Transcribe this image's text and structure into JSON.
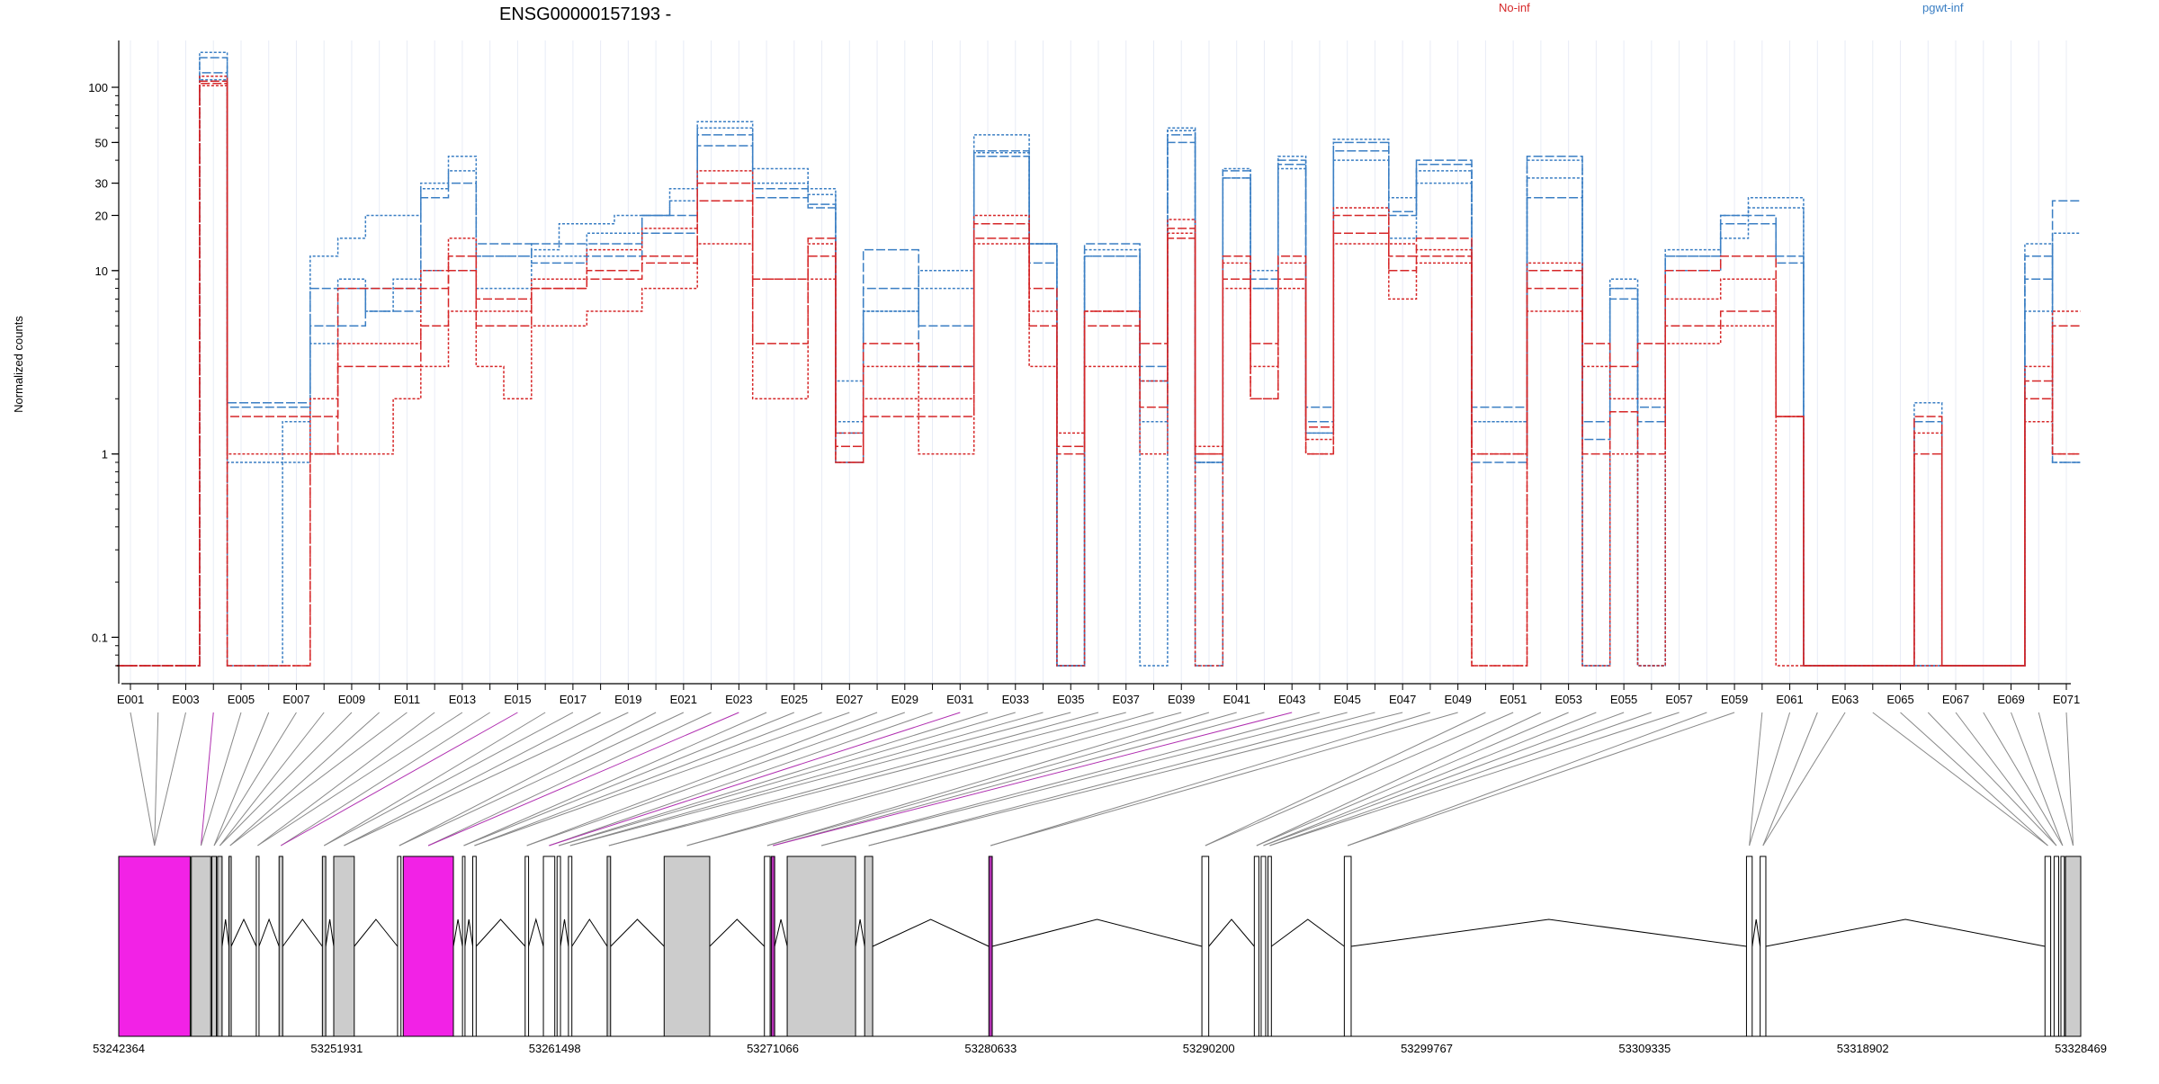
{
  "chart_data": {
    "type": "line",
    "title": "ENSG00000157193 -",
    "ylabel": "Normalized counts",
    "y_scale": "log",
    "ylim": [
      0.07,
      180
    ],
    "y_ticks": [
      0.1,
      1,
      10,
      20,
      30,
      50,
      100
    ],
    "y_tick_labels": [
      "0.1",
      "1",
      "10",
      "20",
      "30",
      "50",
      "100"
    ],
    "legend": [
      {
        "label": "No-inf",
        "color": "#d62728"
      },
      {
        "label": "pgwt-inf",
        "color": "#3b7fc4"
      }
    ],
    "exon_labels": [
      "E001",
      "E003",
      "E005",
      "E007",
      "E009",
      "E011",
      "E013",
      "E015",
      "E017",
      "E019",
      "E021",
      "E023",
      "E025",
      "E027",
      "E029",
      "E031",
      "E033",
      "E035",
      "E037",
      "E039",
      "E041",
      "E043",
      "E045",
      "E047",
      "E049",
      "E051",
      "E053",
      "E055",
      "E057",
      "E059",
      "E061",
      "E063",
      "E065",
      "E067",
      "E069",
      "E071"
    ],
    "exon_count": 71,
    "series": [
      {
        "group": "pgwt-inf",
        "color": "#3b7fc4",
        "dash": "10,3",
        "values": [
          0.07,
          0.07,
          0.07,
          145,
          1.9,
          1.9,
          1.9,
          5,
          5,
          8,
          8,
          10,
          10,
          14,
          14,
          11,
          11,
          12,
          12,
          16,
          16,
          48,
          48,
          28,
          28,
          23,
          0.9,
          13,
          13,
          5,
          5,
          45,
          45,
          14,
          0.07,
          12,
          12,
          3,
          55,
          0.9,
          35,
          8,
          40,
          1.5,
          50,
          50,
          21,
          40,
          40,
          1.8,
          1.8,
          42,
          42,
          1.5,
          8,
          1.5,
          12,
          12,
          20,
          20,
          11,
          0.07,
          0.07,
          0.07,
          0.07,
          1.5,
          0.07,
          0.07,
          0.07,
          12,
          0.9
        ]
      },
      {
        "group": "pgwt-inf",
        "color": "#3b7fc4",
        "dash": "3,2",
        "values": [
          0.07,
          0.07,
          0.07,
          155,
          0.9,
          0.9,
          1.5,
          12,
          15,
          20,
          20,
          30,
          42,
          12,
          12,
          13,
          18,
          18,
          20,
          20,
          24,
          60,
          60,
          30,
          30,
          28,
          1.5,
          6,
          6,
          8,
          8,
          55,
          55,
          14,
          0.07,
          13,
          13,
          1.5,
          58,
          0.9,
          36,
          8,
          42,
          1.3,
          52,
          52,
          25,
          35,
          35,
          1.5,
          1.5,
          40,
          40,
          0.07,
          9,
          0.07,
          13,
          13,
          20,
          25,
          25,
          0.07,
          0.07,
          0.07,
          0.07,
          1.9,
          0.07,
          0.07,
          0.07,
          14,
          0.9
        ]
      },
      {
        "group": "pgwt-inf",
        "color": "#3b7fc4",
        "dash": "10,3",
        "values": [
          0.07,
          0.07,
          0.07,
          120,
          1.8,
          1.8,
          1.8,
          8,
          8,
          6,
          6,
          25,
          30,
          12,
          12,
          14,
          14,
          14,
          14,
          20,
          20,
          55,
          55,
          25,
          25,
          22,
          1.3,
          8,
          8,
          3,
          3,
          42,
          42,
          11,
          0.07,
          14,
          14,
          2.5,
          50,
          0.07,
          32,
          9,
          38,
          1.8,
          45,
          45,
          20,
          38,
          38,
          0.9,
          0.9,
          25,
          25,
          1.2,
          7,
          1.8,
          12,
          12,
          18,
          18,
          12,
          0.07,
          0.07,
          0.07,
          0.07,
          0.07,
          0.07,
          0.07,
          0.07,
          9,
          24
        ]
      },
      {
        "group": "pgwt-inf",
        "color": "#3b7fc4",
        "dash": "3,2",
        "values": [
          0.07,
          0.07,
          0.07,
          110,
          0.07,
          0.07,
          0.9,
          4,
          9,
          6,
          9,
          28,
          35,
          8,
          8,
          12,
          12,
          16,
          16,
          20,
          28,
          65,
          65,
          36,
          36,
          26,
          2.5,
          6,
          6,
          10,
          10,
          44,
          44,
          14,
          0.07,
          12,
          12,
          0.07,
          60,
          0.9,
          32,
          10,
          36,
          1.3,
          40,
          40,
          15,
          30,
          30,
          1.5,
          1.5,
          32,
          32,
          0.07,
          8,
          0.07,
          10,
          10,
          15,
          22,
          22,
          0.07,
          0.07,
          0.07,
          0.07,
          0.07,
          0.07,
          0.07,
          0.07,
          6,
          16
        ]
      },
      {
        "group": "No-inf",
        "color": "#d62728",
        "dash": "10,3",
        "values": [
          0.07,
          0.07,
          0.07,
          105,
          1.6,
          1.6,
          1.6,
          1.6,
          8,
          8,
          8,
          8,
          12,
          7,
          7,
          8,
          8,
          10,
          10,
          11,
          11,
          30,
          30,
          9,
          9,
          15,
          1.1,
          1.6,
          1.6,
          1.6,
          1.6,
          18,
          18,
          8,
          1.1,
          6,
          6,
          4,
          17,
          1.0,
          12,
          4,
          12,
          1.4,
          20,
          20,
          12,
          15,
          15,
          1.0,
          1.0,
          10,
          10,
          4,
          3,
          4,
          10,
          10,
          12,
          12,
          1.6,
          0.07,
          0.07,
          0.07,
          0.07,
          1.6,
          0.07,
          0.07,
          0.07,
          2,
          1.0
        ]
      },
      {
        "group": "No-inf",
        "color": "#d62728",
        "dash": "3,2",
        "values": [
          0.07,
          0.07,
          0.07,
          115,
          1.0,
          1.0,
          1.0,
          2,
          4,
          4,
          4,
          10,
          15,
          6,
          6,
          9,
          9,
          13,
          13,
          17,
          17,
          35,
          35,
          9,
          9,
          14,
          1.3,
          3,
          3,
          2,
          2,
          20,
          20,
          6,
          1.3,
          6,
          6,
          2.5,
          19,
          1.1,
          11,
          3,
          11,
          1.2,
          22,
          22,
          14,
          13,
          13,
          1.0,
          1.0,
          11,
          11,
          3,
          2,
          2,
          7,
          7,
          9,
          9,
          1.6,
          0.07,
          0.07,
          0.07,
          0.07,
          1.3,
          0.07,
          0.07,
          0.07,
          3,
          1.0
        ]
      },
      {
        "group": "No-inf",
        "color": "#d62728",
        "dash": "10,3",
        "values": [
          0.07,
          0.07,
          0.07,
          108,
          0.07,
          0.07,
          0.07,
          1.0,
          3,
          3,
          3,
          5,
          10,
          5,
          5,
          8,
          8,
          9,
          9,
          12,
          12,
          24,
          24,
          4,
          4,
          12,
          0.9,
          4,
          4,
          3,
          3,
          15,
          15,
          5,
          1.0,
          5,
          5,
          1.8,
          15,
          1.0,
          9,
          2,
          9,
          1.0,
          16,
          16,
          10,
          12,
          12,
          0.07,
          0.07,
          8,
          8,
          1.0,
          1.7,
          1.0,
          5,
          5,
          6,
          6,
          1.6,
          0.07,
          0.07,
          0.07,
          0.07,
          1.0,
          0.07,
          0.07,
          0.07,
          2.5,
          5
        ]
      },
      {
        "group": "No-inf",
        "color": "#d62728",
        "dash": "3,2",
        "values": [
          0.07,
          0.07,
          0.07,
          102,
          0.07,
          0.07,
          0.07,
          1.0,
          1.0,
          1.0,
          2,
          3,
          6,
          3,
          2,
          5,
          5,
          6,
          6,
          8,
          8,
          14,
          14,
          2,
          2,
          9,
          0.9,
          2,
          2,
          1.0,
          1.0,
          14,
          14,
          3,
          0.07,
          3,
          3,
          1.0,
          16,
          0.07,
          8,
          2,
          8,
          1.0,
          14,
          14,
          7,
          11,
          11,
          0.07,
          0.07,
          6,
          6,
          0.07,
          1.0,
          0.07,
          4,
          4,
          5,
          5,
          0.07,
          0.07,
          0.07,
          0.07,
          0.07,
          0.07,
          0.07,
          0.07,
          0.07,
          1.5,
          6
        ]
      }
    ],
    "genomic_ticks": [
      "53242364",
      "53251931",
      "53261498",
      "53271066",
      "53280633",
      "53290200",
      "53299767",
      "53309335",
      "53318902",
      "53328469"
    ],
    "genomic_range": [
      53242364,
      53328469
    ],
    "gene_model_exons": [
      {
        "start": 53242364,
        "end": 53245500,
        "fill": "#f222e6"
      },
      {
        "start": 53245550,
        "end": 53246400,
        "fill": "#cccccc"
      },
      {
        "start": 53246450,
        "end": 53246650,
        "fill": "#cccccc"
      },
      {
        "start": 53246700,
        "end": 53246900,
        "fill": "#cccccc"
      },
      {
        "start": 53247200,
        "end": 53247300,
        "fill": "#cccccc"
      },
      {
        "start": 53248400,
        "end": 53248520,
        "fill": "#ffffff"
      },
      {
        "start": 53249400,
        "end": 53249560,
        "fill": "#cccccc"
      },
      {
        "start": 53251300,
        "end": 53251450,
        "fill": "#cccccc"
      },
      {
        "start": 53251800,
        "end": 53252700,
        "fill": "#cccccc"
      },
      {
        "start": 53254600,
        "end": 53254750,
        "fill": "#ffffff"
      },
      {
        "start": 53254850,
        "end": 53257050,
        "fill": "#f222e6"
      },
      {
        "start": 53257450,
        "end": 53257560,
        "fill": "#ffffff"
      },
      {
        "start": 53257900,
        "end": 53258050,
        "fill": "#ffffff"
      },
      {
        "start": 53260200,
        "end": 53260350,
        "fill": "#ffffff"
      },
      {
        "start": 53261000,
        "end": 53261500,
        "fill": "#ffffff"
      },
      {
        "start": 53261600,
        "end": 53261750,
        "fill": "#ffffff"
      },
      {
        "start": 53262100,
        "end": 53262250,
        "fill": "#ffffff"
      },
      {
        "start": 53263800,
        "end": 53263950,
        "fill": "#cccccc"
      },
      {
        "start": 53266300,
        "end": 53268300,
        "fill": "#cccccc"
      },
      {
        "start": 53270700,
        "end": 53270950,
        "fill": "#ffffff"
      },
      {
        "start": 53271000,
        "end": 53271150,
        "fill": "#b02fb0"
      },
      {
        "start": 53271700,
        "end": 53274700,
        "fill": "#cccccc"
      },
      {
        "start": 53275100,
        "end": 53275450,
        "fill": "#cccccc"
      },
      {
        "start": 53280550,
        "end": 53280700,
        "fill": "#b02fb0"
      },
      {
        "start": 53289900,
        "end": 53290200,
        "fill": "#ffffff"
      },
      {
        "start": 53292200,
        "end": 53292400,
        "fill": "#ffffff"
      },
      {
        "start": 53292500,
        "end": 53292700,
        "fill": "#ffffff"
      },
      {
        "start": 53292800,
        "end": 53292950,
        "fill": "#ffffff"
      },
      {
        "start": 53296150,
        "end": 53296450,
        "fill": "#ffffff"
      },
      {
        "start": 53313800,
        "end": 53314050,
        "fill": "#ffffff"
      },
      {
        "start": 53314400,
        "end": 53314650,
        "fill": "#ffffff"
      },
      {
        "start": 53326900,
        "end": 53327150,
        "fill": "#ffffff"
      },
      {
        "start": 53327300,
        "end": 53327500,
        "fill": "#ffffff"
      },
      {
        "start": 53327600,
        "end": 53327750,
        "fill": "#ffffff"
      },
      {
        "start": 53327800,
        "end": 53328469,
        "fill": "#cccccc"
      }
    ]
  }
}
